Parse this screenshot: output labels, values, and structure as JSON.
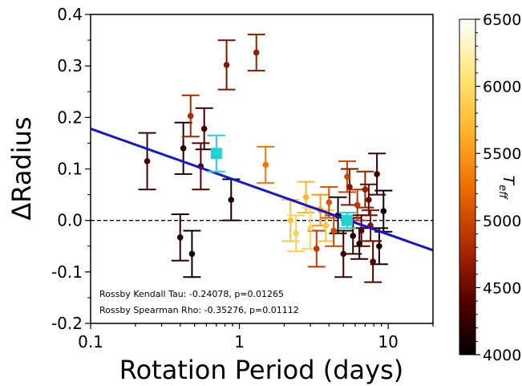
{
  "chart_data": {
    "type": "scatter",
    "xlabel": "Rotation Period (days)",
    "ylabel": "ΔRadius",
    "xscale": "log",
    "xlim": [
      0.1,
      20
    ],
    "ylim": [
      -0.2,
      0.4
    ],
    "x_ticks": [
      0.1,
      1,
      10
    ],
    "x_tick_labels": [
      "0.1",
      "1",
      "10"
    ],
    "y_ticks": [
      -0.2,
      -0.1,
      0.0,
      0.1,
      0.2,
      0.3,
      0.4
    ],
    "y_tick_labels": [
      "-0.2",
      "-0.1",
      "0.0",
      "0.1",
      "0.2",
      "0.3",
      "0.4"
    ],
    "grid": false,
    "reference_line": {
      "y": 0.0,
      "style": "dashed",
      "color": "#000000"
    },
    "fit_line": {
      "color": "#1515d6",
      "points": [
        [
          0.1,
          0.178
        ],
        [
          20,
          -0.058
        ]
      ]
    },
    "annotations": [
      "Rossby Kendall Tau: -0.24078, p=0.01265",
      "Rossby Spearman Rho: -0.35276, p=0.01112"
    ],
    "colorbar": {
      "label": "T",
      "label_sub": "eff",
      "min": 4000,
      "max": 6500,
      "ticks": [
        4000,
        4500,
        5000,
        5500,
        6000,
        6500
      ],
      "tick_labels": [
        "4000",
        "4500",
        "5000",
        "5500",
        "6000",
        "6500"
      ],
      "colormap": "afmhot",
      "stops": [
        "#000000",
        "#5a0000",
        "#b42d00",
        "#f06e00",
        "#ffb428",
        "#ffe678",
        "#ffffff"
      ]
    },
    "highlight_points": [
      {
        "x": 0.7,
        "y": 0.13,
        "yerr": 0.035,
        "color": "#22d3d3"
      },
      {
        "x": 5.3,
        "y": 0.0,
        "yerr": 0.015,
        "color": "#22d3d3"
      }
    ],
    "points": [
      {
        "x": 0.24,
        "y": 0.115,
        "yerr": 0.055,
        "teff": 4300
      },
      {
        "x": 0.4,
        "y": -0.033,
        "yerr": 0.045,
        "teff": 4200
      },
      {
        "x": 0.42,
        "y": 0.14,
        "yerr": 0.05,
        "teff": 4150
      },
      {
        "x": 0.47,
        "y": 0.203,
        "yerr": 0.04,
        "teff": 4800
      },
      {
        "x": 0.48,
        "y": -0.065,
        "yerr": 0.045,
        "teff": 4050
      },
      {
        "x": 0.55,
        "y": 0.105,
        "yerr": 0.045,
        "teff": 4400
      },
      {
        "x": 0.58,
        "y": 0.178,
        "yerr": 0.04,
        "teff": 4300
      },
      {
        "x": 0.82,
        "y": 0.302,
        "yerr": 0.048,
        "teff": 4600
      },
      {
        "x": 0.88,
        "y": 0.04,
        "yerr": 0.04,
        "teff": 4100
      },
      {
        "x": 1.3,
        "y": 0.326,
        "yerr": 0.035,
        "teff": 4700
      },
      {
        "x": 1.5,
        "y": 0.108,
        "yerr": 0.035,
        "teff": 5300
      },
      {
        "x": 2.2,
        "y": 0.0,
        "yerr": 0.04,
        "teff": 5800
      },
      {
        "x": 2.4,
        "y": -0.025,
        "yerr": 0.035,
        "teff": 5900
      },
      {
        "x": 2.8,
        "y": 0.045,
        "yerr": 0.03,
        "teff": 5700
      },
      {
        "x": 3.0,
        "y": -0.015,
        "yerr": 0.04,
        "teff": 5950
      },
      {
        "x": 3.3,
        "y": -0.055,
        "yerr": 0.035,
        "teff": 4900
      },
      {
        "x": 3.5,
        "y": 0.02,
        "yerr": 0.03,
        "teff": 5500
      },
      {
        "x": 3.8,
        "y": -0.01,
        "yerr": 0.03,
        "teff": 5800
      },
      {
        "x": 4.0,
        "y": 0.035,
        "yerr": 0.03,
        "teff": 5100
      },
      {
        "x": 4.3,
        "y": -0.02,
        "yerr": 0.03,
        "teff": 5000
      },
      {
        "x": 4.6,
        "y": 0.01,
        "yerr": 0.035,
        "teff": 4100
      },
      {
        "x": 5.0,
        "y": -0.065,
        "yerr": 0.045,
        "teff": 4300
      },
      {
        "x": 5.3,
        "y": 0.085,
        "yerr": 0.03,
        "teff": 5000
      },
      {
        "x": 5.5,
        "y": 0.065,
        "yerr": 0.035,
        "teff": 4600
      },
      {
        "x": 5.8,
        "y": -0.03,
        "yerr": 0.035,
        "teff": 4200
      },
      {
        "x": 6.2,
        "y": 0.03,
        "yerr": 0.03,
        "teff": 4900
      },
      {
        "x": 6.6,
        "y": -0.02,
        "yerr": 0.03,
        "teff": 4400
      },
      {
        "x": 7.0,
        "y": 0.06,
        "yerr": 0.035,
        "teff": 4700
      },
      {
        "x": 7.4,
        "y": 0.04,
        "yerr": 0.03,
        "teff": 4500
      },
      {
        "x": 7.9,
        "y": -0.08,
        "yerr": 0.04,
        "teff": 4400
      },
      {
        "x": 8.4,
        "y": 0.09,
        "yerr": 0.04,
        "teff": 4300
      },
      {
        "x": 8.7,
        "y": -0.05,
        "yerr": 0.035,
        "teff": 4100
      },
      {
        "x": 9.3,
        "y": 0.018,
        "yerr": 0.04,
        "teff": 4000
      },
      {
        "x": 7.6,
        "y": -0.01,
        "yerr": 0.03,
        "teff": 4600
      },
      {
        "x": 6.4,
        "y": -0.045,
        "yerr": 0.03,
        "teff": 4150
      }
    ]
  }
}
